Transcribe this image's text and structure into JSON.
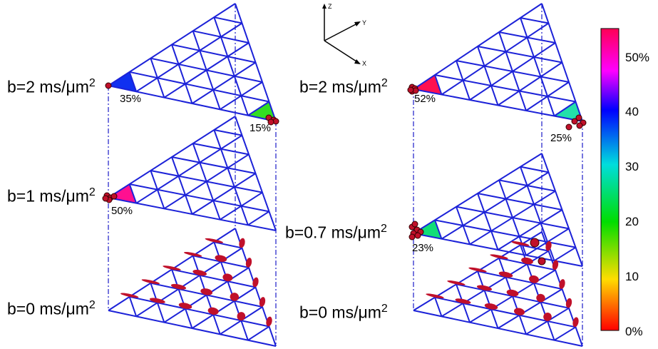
{
  "left_column": {
    "top": {
      "label": "b=2 ms/μm",
      "exp": "2",
      "pct_a": "35%",
      "pct_b": "15%"
    },
    "middle": {
      "label": "b=1 ms/μm",
      "exp": "2",
      "pct_a": "50%"
    },
    "bottom": {
      "label": "b=0 ms/μm",
      "exp": "2"
    }
  },
  "right_column": {
    "top": {
      "label": "b=2 ms/μm",
      "exp": "2",
      "pct_a": "52%",
      "pct_b": "25%"
    },
    "middle": {
      "label": "b=0.7 ms/μm",
      "exp": "2",
      "pct_a": "23%"
    },
    "bottom": {
      "label": "b=0 ms/μm",
      "exp": "2"
    }
  },
  "axes_triad": {
    "z": "Z",
    "y": "Y",
    "x": "X"
  },
  "colorbar": {
    "ticks": [
      "50%",
      "40",
      "30",
      "20",
      "10",
      "0%"
    ],
    "colors": [
      "#ff0000",
      "#ffdd00",
      "#00dd00",
      "#00dddd",
      "#0000ff",
      "#ff00ff",
      "#ff0055"
    ]
  },
  "colors": {
    "grid": "#1c22d8",
    "guide": "#1a1ac8",
    "glyph": "#c0102a"
  }
}
